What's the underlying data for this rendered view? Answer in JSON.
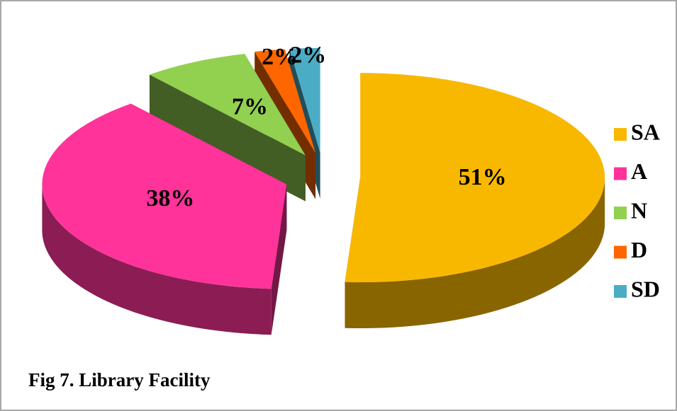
{
  "chart_data": {
    "type": "pie3d",
    "title": "Fig 7. Library Facility",
    "categories": [
      "SA",
      "A",
      "N",
      "D",
      "SD"
    ],
    "values": [
      51,
      38,
      7,
      2,
      2
    ],
    "value_labels": [
      "51%",
      "38%",
      "7%",
      "2%",
      "2%"
    ],
    "colors": [
      "#f9b800",
      "#ff3399",
      "#92d050",
      "#ff6600",
      "#4bacc6"
    ],
    "legend": "right"
  }
}
